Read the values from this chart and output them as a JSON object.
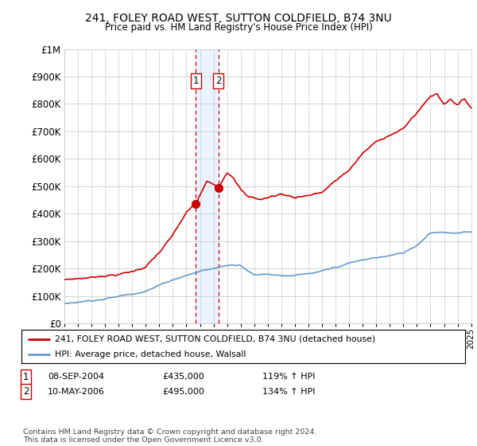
{
  "title_line1": "241, FOLEY ROAD WEST, SUTTON COLDFIELD, B74 3NU",
  "title_line2": "Price paid vs. HM Land Registry's House Price Index (HPI)",
  "ylabel_ticks": [
    "£0",
    "£100K",
    "£200K",
    "£300K",
    "£400K",
    "£500K",
    "£600K",
    "£700K",
    "£800K",
    "£900K",
    "£1M"
  ],
  "ytick_values": [
    0,
    100000,
    200000,
    300000,
    400000,
    500000,
    600000,
    700000,
    800000,
    900000,
    1000000
  ],
  "x_start_year": 1995,
  "x_end_year": 2025,
  "legend_line1": "241, FOLEY ROAD WEST, SUTTON COLDFIELD, B74 3NU (detached house)",
  "legend_line2": "HPI: Average price, detached house, Walsall",
  "transaction1_date": "08-SEP-2004",
  "transaction1_price": "£435,000",
  "transaction1_hpi": "119% ↑ HPI",
  "transaction1_year": 2004.69,
  "transaction1_value": 435000,
  "transaction2_date": "10-MAY-2006",
  "transaction2_price": "£495,000",
  "transaction2_hpi": "134% ↑ HPI",
  "transaction2_year": 2006.36,
  "transaction2_value": 495000,
  "hpi_color": "#6699cc",
  "price_color": "#cc0000",
  "vband_color": "#ddeeff",
  "footer_text": "Contains HM Land Registry data © Crown copyright and database right 2024.\nThis data is licensed under the Open Government Licence v3.0.",
  "background_color": "#ffffff",
  "grid_color": "#cccccc"
}
